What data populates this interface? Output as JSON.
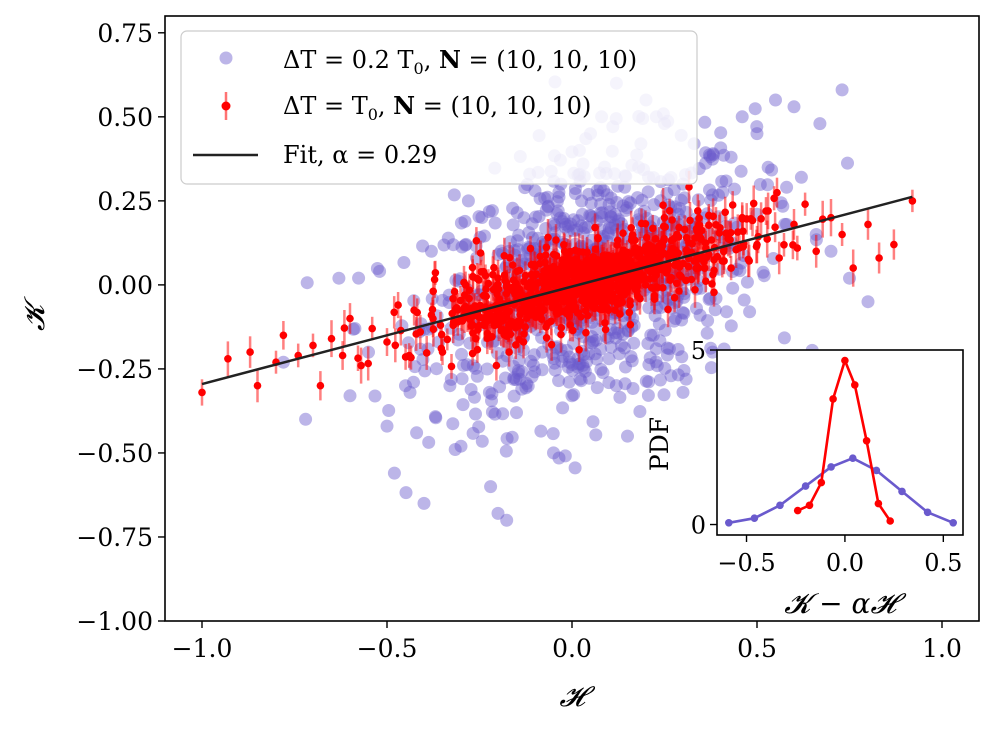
{
  "chart_data": [
    {
      "type": "scatter",
      "title": "",
      "xlabel": "𝓗",
      "ylabel": "𝓚",
      "xlim": [
        -1.1,
        1.1
      ],
      "ylim": [
        -1.0,
        0.8
      ],
      "xticks": [
        -1.0,
        -0.5,
        0.0,
        0.5,
        1.0
      ],
      "xtick_labels": [
        "−1.0",
        "−0.5",
        "0.0",
        "0.5",
        "1.0"
      ],
      "yticks": [
        -1.0,
        -0.75,
        -0.5,
        -0.25,
        0.0,
        0.25,
        0.5,
        0.75
      ],
      "ytick_labels": [
        "−1.00",
        "−0.75",
        "−0.50",
        "−0.25",
        "0.00",
        "0.25",
        "0.50",
        "0.75"
      ],
      "grid": false,
      "legend_position": "top-left",
      "series": [
        {
          "name": "ΔT = 0.2 T₀, N = (10, 10, 10)",
          "kind": "scatter",
          "color": "#6a5acd",
          "alpha": 0.45,
          "n_points_approx": 900,
          "sample_points": [
            [
              -0.78,
              -0.23
            ],
            [
              -0.72,
              -0.4
            ],
            [
              -0.63,
              0.02
            ],
            [
              -0.6,
              -0.33
            ],
            [
              -0.55,
              -0.2
            ],
            [
              -0.52,
              0.04
            ],
            [
              -0.5,
              -0.42
            ],
            [
              -0.48,
              -0.56
            ],
            [
              -0.45,
              -0.3
            ],
            [
              -0.42,
              -0.44
            ],
            [
              -0.4,
              -0.65
            ],
            [
              -0.38,
              0.1
            ],
            [
              -0.36,
              -0.17
            ],
            [
              -0.33,
              -0.3
            ],
            [
              -0.3,
              -0.48
            ],
            [
              -0.28,
              0.25
            ],
            [
              -0.25,
              -0.12
            ],
            [
              -0.22,
              -0.6
            ],
            [
              -0.2,
              -0.68
            ],
            [
              -0.18,
              0.05
            ],
            [
              -0.15,
              -0.38
            ],
            [
              -0.13,
              0.2
            ],
            [
              -0.1,
              0.28
            ],
            [
              -0.08,
              -0.2
            ],
            [
              -0.05,
              -0.5
            ],
            [
              -0.03,
              0.3
            ],
            [
              0.0,
              -0.33
            ],
            [
              0.02,
              0.4
            ],
            [
              0.05,
              0.45
            ],
            [
              0.08,
              0.5
            ],
            [
              0.1,
              -0.22
            ],
            [
              0.12,
              0.6
            ],
            [
              0.15,
              -0.45
            ],
            [
              0.18,
              0.35
            ],
            [
              0.2,
              0.55
            ],
            [
              0.22,
              -0.15
            ],
            [
              0.25,
              0.48
            ],
            [
              0.28,
              -0.1
            ],
            [
              0.3,
              0.3
            ],
            [
              0.33,
              0.42
            ],
            [
              0.36,
              0.2
            ],
            [
              0.4,
              0.15
            ],
            [
              0.43,
              0.38
            ],
            [
              0.46,
              0.5
            ],
            [
              0.5,
              0.45
            ],
            [
              0.53,
              0.35
            ],
            [
              0.55,
              0.55
            ],
            [
              0.6,
              0.53
            ],
            [
              0.62,
              0.32
            ],
            [
              0.66,
              0.15
            ],
            [
              0.7,
              0.1
            ],
            [
              0.75,
              0.02
            ],
            [
              0.8,
              -0.05
            ],
            [
              0.73,
              0.58
            ],
            [
              0.67,
              0.48
            ],
            [
              0.58,
              0.18
            ],
            [
              0.48,
              -0.08
            ],
            [
              0.38,
              -0.2
            ],
            [
              0.3,
              -0.32
            ],
            [
              0.2,
              0.08
            ]
          ]
        },
        {
          "name": "ΔT = T₀, N = (10, 10, 10)",
          "kind": "errorbar",
          "color": "#ff0000",
          "n_points_approx": 900,
          "typical_yerr": 0.04,
          "sample_points": [
            [
              -1.0,
              -0.32
            ],
            [
              -0.93,
              -0.22
            ],
            [
              -0.87,
              -0.2
            ],
            [
              -0.85,
              -0.3
            ],
            [
              -0.8,
              -0.23
            ],
            [
              -0.78,
              -0.15
            ],
            [
              -0.74,
              -0.21
            ],
            [
              -0.7,
              -0.18
            ],
            [
              -0.68,
              -0.3
            ],
            [
              -0.65,
              -0.16
            ],
            [
              -0.62,
              -0.21
            ],
            [
              -0.6,
              -0.1
            ],
            [
              -0.57,
              -0.24
            ],
            [
              -0.54,
              -0.13
            ],
            [
              -0.5,
              -0.17
            ],
            [
              -0.47,
              -0.06
            ],
            [
              -0.44,
              -0.21
            ],
            [
              -0.41,
              -0.14
            ],
            [
              -0.38,
              -0.09
            ],
            [
              -0.35,
              -0.2
            ],
            [
              -0.32,
              -0.11
            ],
            [
              -0.29,
              -0.03
            ],
            [
              -0.26,
              -0.16
            ],
            [
              -0.23,
              -0.08
            ],
            [
              -0.2,
              0.02
            ],
            [
              -0.17,
              -0.12
            ],
            [
              -0.14,
              -0.04
            ],
            [
              -0.11,
              0.06
            ],
            [
              -0.08,
              -0.07
            ],
            [
              -0.05,
              0.01
            ],
            [
              -0.02,
              0.1
            ],
            [
              0.01,
              -0.03
            ],
            [
              0.04,
              0.05
            ],
            [
              0.07,
              0.14
            ],
            [
              0.1,
              0.0
            ],
            [
              0.13,
              0.08
            ],
            [
              0.16,
              0.17
            ],
            [
              0.19,
              0.03
            ],
            [
              0.22,
              0.11
            ],
            [
              0.25,
              0.2
            ],
            [
              0.28,
              0.06
            ],
            [
              0.31,
              0.14
            ],
            [
              0.34,
              0.22
            ],
            [
              0.37,
              0.09
            ],
            [
              0.4,
              0.17
            ],
            [
              0.43,
              0.05
            ],
            [
              0.46,
              0.2
            ],
            [
              0.5,
              0.12
            ],
            [
              0.53,
              0.22
            ],
            [
              0.56,
              0.08
            ],
            [
              0.6,
              0.18
            ],
            [
              0.63,
              0.24
            ],
            [
              0.66,
              0.1
            ],
            [
              0.7,
              0.2
            ],
            [
              0.73,
              0.15
            ],
            [
              0.76,
              0.05
            ],
            [
              0.8,
              0.18
            ],
            [
              0.83,
              0.08
            ],
            [
              0.87,
              0.12
            ],
            [
              0.92,
              0.25
            ]
          ]
        },
        {
          "name": "Fit, α = 0.29",
          "kind": "line",
          "color": "#222222",
          "x": [
            -1.0,
            0.92
          ],
          "y": [
            -0.295,
            0.262
          ]
        }
      ]
    },
    {
      "type": "line",
      "title": "",
      "xlabel": "𝓚 − α𝓗",
      "ylabel": "PDF",
      "xlim": [
        -0.65,
        0.6
      ],
      "ylim": [
        -0.3,
        5.0
      ],
      "xticks": [
        -0.5,
        0.0,
        0.5
      ],
      "xtick_labels": [
        "−0.5",
        "0.0",
        "0.5"
      ],
      "yticks": [
        0,
        5
      ],
      "ytick_labels": [
        "0",
        "5"
      ],
      "grid": false,
      "legend_position": "none",
      "series": [
        {
          "color": "#6a5acd",
          "x": [
            -0.59,
            -0.46,
            -0.33,
            -0.2,
            -0.07,
            0.04,
            0.16,
            0.29,
            0.42,
            0.55
          ],
          "y": [
            0.05,
            0.18,
            0.55,
            1.1,
            1.65,
            1.9,
            1.55,
            0.95,
            0.35,
            0.05
          ]
        },
        {
          "color": "#ff0000",
          "x": [
            -0.24,
            -0.18,
            -0.12,
            -0.06,
            0.0,
            0.05,
            0.11,
            0.17,
            0.23
          ],
          "y": [
            0.4,
            0.55,
            1.2,
            3.6,
            4.7,
            4.0,
            2.4,
            0.6,
            0.1
          ]
        }
      ]
    }
  ],
  "legend": {
    "entries": [
      {
        "label_math": "ΔT = 0.2 T",
        "sub": "0",
        "bold": "N",
        "rest": " = (10, 10, 10)",
        "sep": ", "
      },
      {
        "label_math": "ΔT = T",
        "sub": "0",
        "bold": "N",
        "rest": " = (10, 10, 10)",
        "sep": ", "
      },
      {
        "label_math": "Fit, α = ",
        "value": "0.29"
      }
    ]
  }
}
